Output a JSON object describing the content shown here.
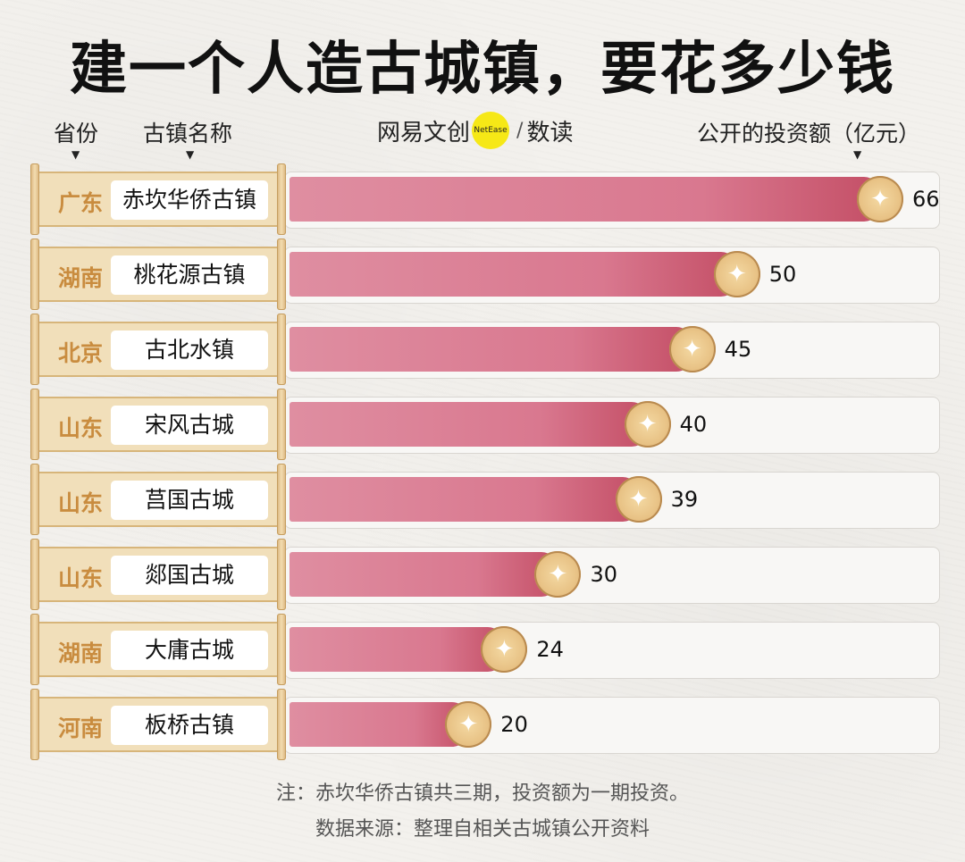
{
  "title": "建一个人造古城镇，要花多少钱",
  "headers": {
    "province": "省份",
    "town_name": "古镇名称",
    "brand_main": "网易文创",
    "brand_logo_text": "NetEase",
    "brand_sub": "数读",
    "investment": "公开的投资额（亿元）"
  },
  "chart_data": {
    "type": "bar",
    "orientation": "horizontal",
    "title": "建一个人造古城镇，要花多少钱",
    "ylabel": "古镇名称",
    "xlabel": "公开的投资额（亿元）",
    "xlim": [
      0,
      66
    ],
    "categories": [
      "赤坎华侨古镇",
      "桃花源古镇",
      "古北水镇",
      "宋风古城",
      "莒国古城",
      "郯国古城",
      "大庸古城",
      "板桥古镇"
    ],
    "provinces": [
      "广东",
      "湖南",
      "北京",
      "山东",
      "山东",
      "山东",
      "湖南",
      "河南"
    ],
    "values": [
      66,
      50,
      45,
      40,
      39,
      30,
      24,
      20
    ]
  },
  "notes": {
    "note": "注：赤坎华侨古镇共三期，投资额为一期投资。",
    "source": "数据来源：整理自相关古城镇公开资料"
  },
  "colors": {
    "bar": "#d9788f",
    "province": "#c98c3f",
    "coin": "#e8c285"
  }
}
